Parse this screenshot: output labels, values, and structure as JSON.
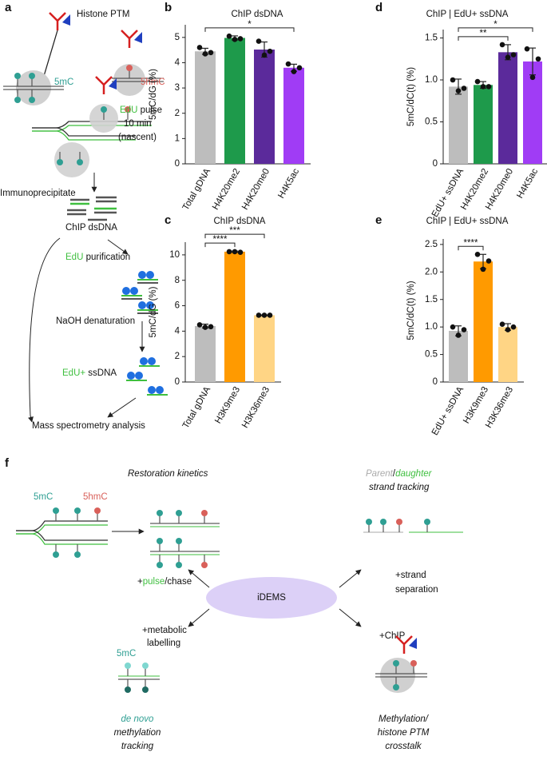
{
  "chart_data": [
    {
      "type": "bar",
      "panel": "b",
      "title": "ChIP dsDNA",
      "ylabel": "5mC/dG (%)",
      "categories": [
        "Total gDNA",
        "H4K20me2",
        "H4K20me0",
        "H4K5ac"
      ],
      "values": [
        4.45,
        4.98,
        4.52,
        3.8
      ],
      "errors": [
        0.12,
        0.08,
        0.3,
        0.14
      ],
      "points": [
        [
          4.6,
          4.35,
          4.4
        ],
        [
          5.05,
          4.92,
          4.95
        ],
        [
          4.85,
          4.3,
          4.45
        ],
        [
          3.95,
          3.65,
          3.8
        ]
      ],
      "colors": [
        "#bdbdbd",
        "#1e9a4b",
        "#5b2a9b",
        "#a03cf5"
      ],
      "ylim": [
        0,
        5.5
      ],
      "yticks": [
        0,
        1,
        2,
        3,
        4,
        5
      ],
      "significance": [
        {
          "between": [
            "Total gDNA",
            "H4K5ac"
          ],
          "label": "*"
        }
      ]
    },
    {
      "type": "bar",
      "panel": "c",
      "title": "ChIP dsDNA",
      "ylabel": "5mC/dG (%)",
      "categories": [
        "Total gDNA",
        "H3K9me3",
        "H3K36me3"
      ],
      "values": [
        4.4,
        10.25,
        5.25
      ],
      "errors": [
        0.15,
        0.05,
        0.03
      ],
      "points": [
        [
          4.5,
          4.3,
          4.35
        ],
        [
          10.25,
          10.25,
          10.2
        ],
        [
          5.25,
          5.25,
          5.25
        ]
      ],
      "colors": [
        "#bdbdbd",
        "#ff9a00",
        "#ffd585"
      ],
      "ylim": [
        0,
        11
      ],
      "yticks": [
        0,
        2,
        4,
        6,
        8,
        10
      ],
      "significance": [
        {
          "between": [
            "Total gDNA",
            "H3K9me3"
          ],
          "label": "****"
        },
        {
          "between": [
            "Total gDNA",
            "H3K36me3"
          ],
          "label": "***"
        }
      ]
    },
    {
      "type": "bar",
      "panel": "d",
      "title": "ChIP | EdU+ ssDNA",
      "ylabel": "5mC/dC(t) (%)",
      "categories": [
        "EdU+ ssDNA",
        "H4K20me2",
        "H4K20me0",
        "H4K5ac"
      ],
      "values": [
        0.92,
        0.94,
        1.33,
        1.22
      ],
      "errors": [
        0.09,
        0.04,
        0.09,
        0.16
      ],
      "points": [
        [
          1.0,
          0.87,
          0.9
        ],
        [
          0.98,
          0.92,
          0.92
        ],
        [
          1.42,
          1.27,
          1.3
        ],
        [
          1.37,
          1.03,
          1.25
        ]
      ],
      "colors": [
        "#bdbdbd",
        "#1e9a4b",
        "#5b2a9b",
        "#a03cf5"
      ],
      "ylim": [
        0,
        1.6
      ],
      "yticks": [
        0,
        0.5,
        {
          "value": 1,
          "label": "1.0"
        },
        1.5
      ],
      "significance": [
        {
          "between": [
            "EdU+ ssDNA",
            "H4K20me0"
          ],
          "label": "**"
        },
        {
          "between": [
            "EdU+ ssDNA",
            "H4K5ac"
          ],
          "label": "*"
        }
      ]
    },
    {
      "type": "bar",
      "panel": "e",
      "title": "ChIP | EdU+ ssDNA",
      "ylabel": "5mC/dC(t) (%)",
      "categories": [
        "EdU+ ssDNA",
        "H3K9me3",
        "H3K36me3"
      ],
      "values": [
        0.93,
        2.19,
        1.0
      ],
      "errors": [
        0.09,
        0.13,
        0.06
      ],
      "points": [
        [
          1.0,
          0.85,
          0.95
        ],
        [
          2.32,
          2.05,
          2.2
        ],
        [
          1.05,
          0.95,
          1.0
        ]
      ],
      "colors": [
        "#bdbdbd",
        "#ff9a00",
        "#ffd585"
      ],
      "ylim": [
        0,
        2.6
      ],
      "yticks": [
        0,
        0.5,
        {
          "value": 1,
          "label": "1.0"
        },
        1.5,
        {
          "value": 2,
          "label": "2.0"
        },
        2.5
      ],
      "significance": [
        {
          "between": [
            "EdU+ ssDNA",
            "H3K9me3"
          ],
          "label": "****"
        }
      ]
    }
  ],
  "panel_a": {
    "label": "a",
    "histone_ptm": "Histone PTM",
    "mark_5mc": "5mC",
    "mark_5hmc": "5hmC",
    "edu": "EdU",
    "pulse": "pulse",
    "duration": "10 min",
    "nascent": "(nascent)",
    "immunoprecipitate": "Immunoprecipitate",
    "chip_dsdna": "ChIP dsDNA",
    "edu_purification": [
      "EdU",
      "purification"
    ],
    "naoh": "NaOH denaturation",
    "edu_ssdna": [
      "EdU+",
      "ssDNA"
    ],
    "mass_spec": "Mass spectrometry analysis"
  },
  "panel_f": {
    "label": "f",
    "restoration": "Restoration kinetics",
    "mark_5mc": "5mC",
    "mark_5hmc": "5hmC",
    "pulse_chase": [
      "+",
      "pulse",
      "/chase"
    ],
    "parent_daughter": [
      "Parent",
      "/",
      "daughter"
    ],
    "strand_tracking": "strand tracking",
    "strand_separation": [
      "+strand",
      "separation"
    ],
    "center": "iDEMS",
    "metabolic": [
      "+metabolic",
      "labelling"
    ],
    "chip": "+ChIP",
    "label_5mc": "5mC",
    "de_novo": [
      "de novo",
      "methylation",
      "tracking"
    ],
    "crosstalk": [
      "Methylation/",
      "histone PTM",
      "crosstalk"
    ]
  }
}
